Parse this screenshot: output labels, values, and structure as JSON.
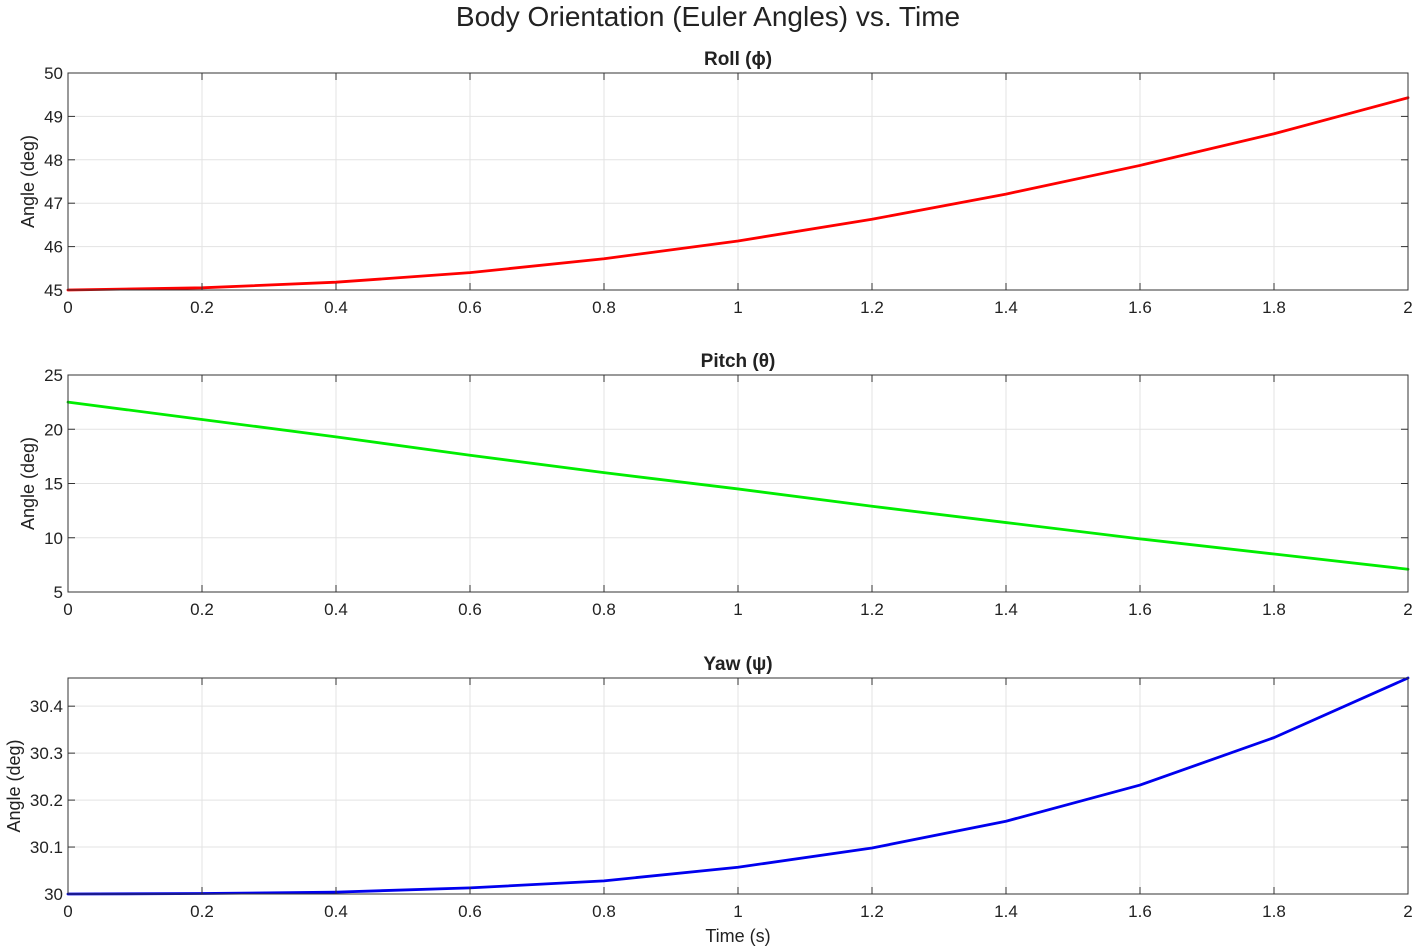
{
  "figure": {
    "title": "Body Orientation (Euler Angles) vs. Time"
  },
  "chart_data": [
    {
      "type": "line",
      "title": "Roll  (ϕ)",
      "xlabel": "",
      "ylabel": "Angle (deg)",
      "xlim": [
        0,
        2
      ],
      "ylim": [
        45,
        50
      ],
      "xticks": [
        "0",
        "0.2",
        "0.4",
        "0.6",
        "0.8",
        "1",
        "1.2",
        "1.4",
        "1.6",
        "1.8",
        "2"
      ],
      "yticks": [
        "45",
        "46",
        "47",
        "48",
        "49",
        "50"
      ],
      "grid": true,
      "color": "#ff0000",
      "x": [
        0,
        0.2,
        0.4,
        0.6,
        0.8,
        1.0,
        1.2,
        1.4,
        1.6,
        1.8,
        2.0
      ],
      "values": [
        45.0,
        45.05,
        45.18,
        45.4,
        45.72,
        46.13,
        46.63,
        47.21,
        47.87,
        48.6,
        49.43
      ]
    },
    {
      "type": "line",
      "title": "Pitch  (θ)",
      "xlabel": "",
      "ylabel": "Angle (deg)",
      "xlim": [
        0,
        2
      ],
      "ylim": [
        5,
        25
      ],
      "xticks": [
        "0",
        "0.2",
        "0.4",
        "0.6",
        "0.8",
        "1",
        "1.2",
        "1.4",
        "1.6",
        "1.8",
        "2"
      ],
      "yticks": [
        "5",
        "10",
        "15",
        "20",
        "25"
      ],
      "grid": true,
      "color": "#00ee00",
      "x": [
        0,
        0.2,
        0.4,
        0.6,
        0.8,
        1.0,
        1.2,
        1.4,
        1.6,
        1.8,
        2.0
      ],
      "values": [
        22.5,
        20.9,
        19.3,
        17.6,
        16.0,
        14.5,
        12.9,
        11.4,
        9.9,
        8.5,
        7.1
      ]
    },
    {
      "type": "line",
      "title": "Yaw  (ψ)",
      "xlabel": "Time (s)",
      "ylabel": "Angle (deg)",
      "xlim": [
        0,
        2
      ],
      "ylim": [
        30,
        30.46
      ],
      "xticks": [
        "0",
        "0.2",
        "0.4",
        "0.6",
        "0.8",
        "1",
        "1.2",
        "1.4",
        "1.6",
        "1.8",
        "2"
      ],
      "yticks": [
        "30",
        "30.1",
        "30.2",
        "30.3",
        "30.4"
      ],
      "ytick_values": [
        30,
        30.1,
        30.2,
        30.3,
        30.4
      ],
      "grid": true,
      "color": "#0000ee",
      "x": [
        0,
        0.2,
        0.4,
        0.6,
        0.8,
        1.0,
        1.2,
        1.4,
        1.6,
        1.8,
        2.0
      ],
      "values": [
        30.0,
        30.001,
        30.004,
        30.013,
        30.028,
        30.057,
        30.098,
        30.155,
        30.232,
        30.333,
        30.46
      ]
    }
  ]
}
